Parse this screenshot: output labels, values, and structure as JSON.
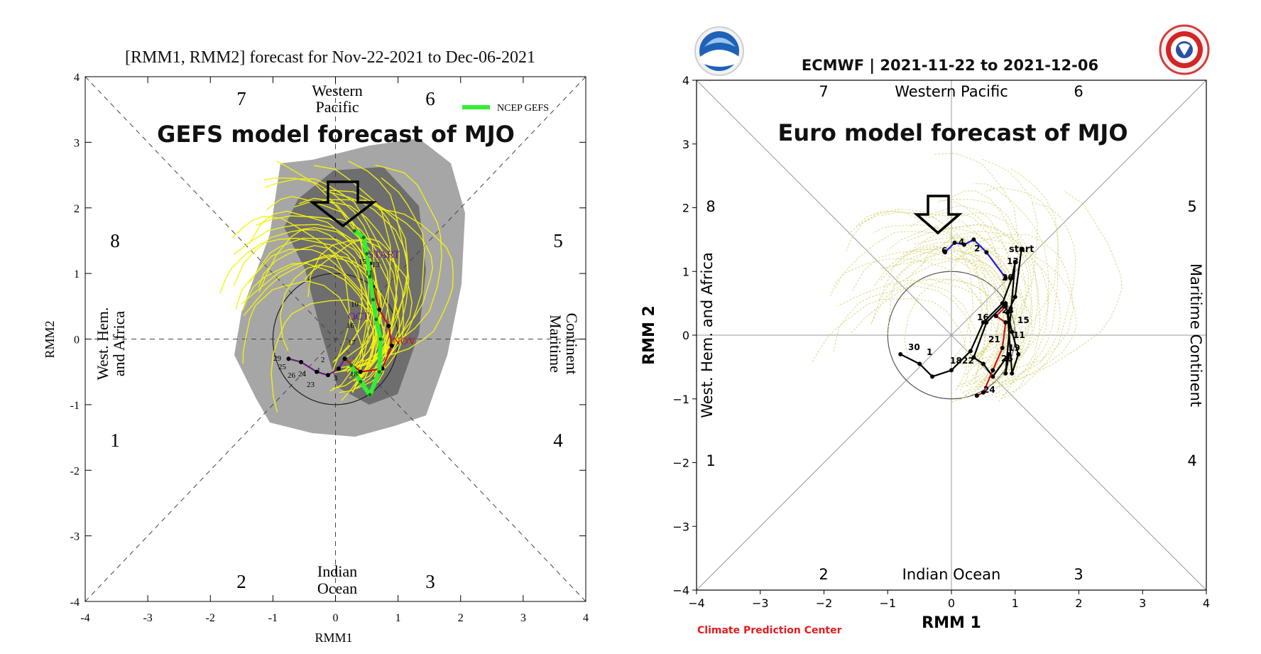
{
  "colors": {
    "gefs_shade_outer": "#a6a6a6",
    "gefs_shade_inner": "#6e6e6e",
    "ensemble_yellow": "#f2f20e",
    "euro_ensemble": "#d8d37a",
    "gefs_mean_green": "#33ee33",
    "observed_purple": "#6a1a8a",
    "forecast_red": "#cc1111",
    "forecast_blue": "#1c1cdd",
    "cpc_red": "#e61c1c"
  },
  "chart_data": [
    {
      "type": "scatter",
      "subtype": "mjo-phase-diagram",
      "title": "[RMM1, RMM2] forecast for Nov-22-2021 to Dec-06-2021",
      "annotation": "GEFS model forecast of MJO",
      "xlabel": "RMM1",
      "ylabel": "RMM2",
      "xlim": [
        -4,
        4
      ],
      "ylim": [
        -4,
        4
      ],
      "xticks": [
        "-4",
        "-3",
        "-2",
        "-1",
        "0",
        "1",
        "2",
        "3",
        "4"
      ],
      "yticks": [
        "-4",
        "-3",
        "-2",
        "-1",
        "0",
        "1",
        "2",
        "3",
        "4"
      ],
      "phases": [
        "1",
        "2",
        "3",
        "4",
        "5",
        "6",
        "7",
        "8"
      ],
      "region_labels": {
        "top": [
          "Western",
          "Pacific"
        ],
        "bottom": [
          "Indian",
          "Ocean"
        ],
        "left": [
          "West. Hem.",
          "and Africa"
        ],
        "right": [
          "Maritime",
          "Continent"
        ]
      },
      "legend": [
        "NCEP GEFS"
      ],
      "month_labels": [
        "START",
        "OCT",
        "NOV"
      ],
      "observed_day_labels": [
        "29",
        "25",
        "26",
        "24",
        "23",
        "2",
        "3",
        "1"
      ],
      "forecast_day_labels": [
        "15",
        "13",
        "11",
        "10",
        "16",
        "17",
        "18"
      ],
      "series": [
        {
          "name": "observed",
          "color": "#6a1a8a",
          "x": [
            -0.75,
            -0.55,
            -0.3,
            -0.12,
            0.05,
            0.15
          ],
          "y": [
            -0.3,
            -0.35,
            -0.5,
            -0.55,
            -0.45,
            -0.3
          ]
        },
        {
          "name": "observed-late",
          "color": "#cc1111",
          "x": [
            0.15,
            0.4,
            0.75,
            0.9,
            0.85,
            0.7,
            0.6,
            0.55
          ],
          "y": [
            -0.3,
            -0.5,
            -0.45,
            -0.1,
            0.2,
            0.45,
            0.8,
            1.15
          ]
        },
        {
          "name": "NCEP GEFS",
          "color": "#33ee33",
          "x": [
            0.25,
            0.4,
            0.55,
            0.7,
            0.72,
            0.65,
            0.6,
            0.55,
            0.5,
            0.45,
            0.3
          ],
          "y": [
            -0.4,
            -0.65,
            -0.85,
            -0.5,
            0.0,
            0.3,
            0.6,
            0.95,
            1.3,
            1.55,
            1.65
          ]
        }
      ],
      "arrow_target": [
        0.25,
        1.65
      ]
    },
    {
      "type": "scatter",
      "subtype": "mjo-phase-diagram",
      "title": "ECMWF | 2021-11-22 to 2021-12-06",
      "annotation": "Euro model forecast of MJO",
      "xlabel": "RMM 1",
      "ylabel": "RMM 2",
      "xlim": [
        -4,
        4
      ],
      "ylim": [
        -4,
        4
      ],
      "xticks": [
        "−4",
        "−3",
        "−2",
        "−1",
        "0",
        "1",
        "2",
        "3",
        "4"
      ],
      "yticks": [
        "−4",
        "−3",
        "−2",
        "−1",
        "0",
        "1",
        "2",
        "3",
        "4"
      ],
      "phases": [
        "1",
        "2",
        "3",
        "4",
        "5",
        "6",
        "7",
        "8"
      ],
      "region_labels": {
        "top": "Western Pacific",
        "bottom": "Indian Ocean",
        "left": "West. Hem. and Africa",
        "right": "Maritime Continent"
      },
      "credit": "Climate Prediction Center",
      "start_label": "start",
      "day_labels": [
        "6",
        "4",
        "2",
        "13",
        "20",
        "16",
        "28",
        "15",
        "11",
        "21",
        "19",
        "26",
        "24",
        "22",
        "18",
        "30",
        "1"
      ],
      "series": [
        {
          "name": "observed",
          "color": "#000000",
          "x": [
            -0.8,
            -0.5,
            -0.3,
            0.0,
            0.3,
            0.5,
            0.8,
            0.95,
            1.0,
            0.85,
            0.9,
            0.65,
            0.5,
            0.35,
            0.55,
            0.85,
            0.95,
            1.05,
            0.95,
            0.88,
            1.0,
            1.1
          ],
          "y": [
            -0.3,
            -0.45,
            -0.65,
            -0.55,
            -0.25,
            0.2,
            0.5,
            0.9,
            1.15,
            -0.6,
            -0.3,
            -0.65,
            -0.45,
            -0.35,
            0.2,
            0.5,
            0.05,
            -0.3,
            -0.6,
            0.35,
            0.6,
            1.35
          ]
        },
        {
          "name": "ensemble-mean-early",
          "color": "#cc1111",
          "x": [
            0.4,
            0.5,
            0.65,
            0.8,
            0.85,
            0.7,
            0.85
          ],
          "y": [
            -0.95,
            -0.9,
            -0.55,
            -0.2,
            0.2,
            0.3,
            0.45
          ]
        },
        {
          "name": "ensemble-mean-late",
          "color": "#1c1cdd",
          "x": [
            0.85,
            0.55,
            0.35,
            0.2,
            0.05,
            -0.1
          ],
          "y": [
            0.9,
            1.3,
            1.5,
            1.42,
            1.45,
            1.3
          ]
        }
      ],
      "arrow_target": [
        -0.1,
        1.45
      ]
    }
  ],
  "logos": {
    "left": "noaa-logo",
    "right": "nws-logo"
  }
}
